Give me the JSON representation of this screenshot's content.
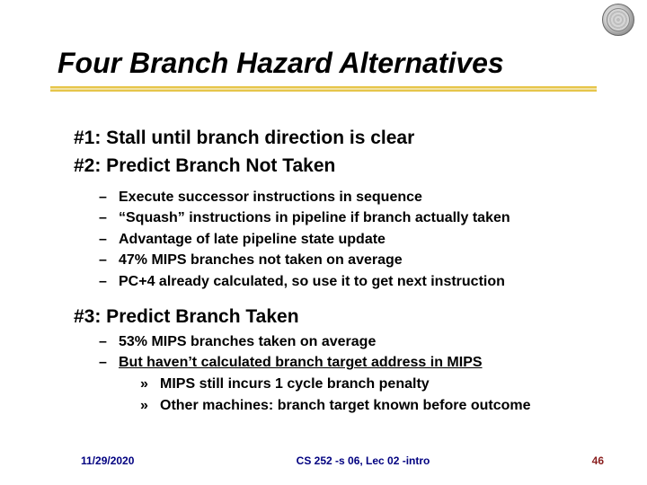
{
  "title": "Four Branch Hazard Alternatives",
  "items": {
    "one": "#1: Stall until branch direction is clear",
    "two": "#2: Predict Branch Not Taken",
    "two_subs": [
      "Execute successor instructions in sequence",
      "“Squash” instructions in pipeline if branch actually taken",
      "Advantage of late pipeline state update",
      "47% MIPS branches not taken on average",
      "PC+4 already calculated, so use it to get next instruction"
    ],
    "three": "#3: Predict Branch Taken",
    "three_subs": {
      "a": "53% MIPS branches taken on average",
      "b": "But haven’t calculated branch target address in MIPS",
      "b_subs": [
        "MIPS still incurs 1 cycle branch penalty",
        "Other machines: branch target known before outcome"
      ]
    }
  },
  "footer": {
    "date": "11/29/2020",
    "mid": "CS 252 -s 06, Lec 02 -intro",
    "page": "46"
  },
  "colors": {
    "underline": "#e6c54a",
    "footer_blue": "#000080",
    "footer_red": "#8a1f1f"
  }
}
